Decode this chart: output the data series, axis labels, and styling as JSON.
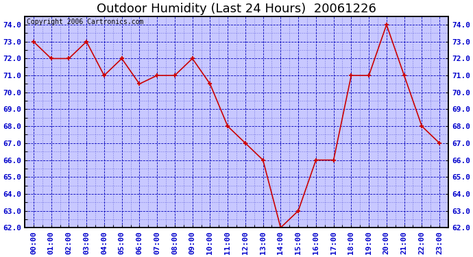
{
  "title": "Outdoor Humidity (Last 24 Hours)  20061226",
  "copyright_text": "Copyright 2006 Cartronics.com",
  "x_labels": [
    "00:00",
    "01:00",
    "02:00",
    "03:00",
    "04:00",
    "05:00",
    "06:00",
    "07:00",
    "08:00",
    "09:00",
    "10:00",
    "11:00",
    "12:00",
    "13:00",
    "14:00",
    "15:00",
    "16:00",
    "17:00",
    "18:00",
    "19:00",
    "20:00",
    "21:00",
    "22:00",
    "23:00"
  ],
  "y_values": [
    73.0,
    72.0,
    72.0,
    73.0,
    71.0,
    72.0,
    70.5,
    71.0,
    71.0,
    72.0,
    70.5,
    68.0,
    67.0,
    66.0,
    62.0,
    63.0,
    66.0,
    66.0,
    71.0,
    71.0,
    74.0,
    71.0,
    68.0,
    67.0
  ],
  "line_color": "#cc0000",
  "marker_color": "#cc0000",
  "plot_bg_color": "#c8c8ff",
  "outer_bg_color": "#ffffff",
  "grid_color": "#0000bb",
  "axis_label_color": "#0000cc",
  "title_color": "#000000",
  "ylim": [
    62.0,
    74.5
  ],
  "ytick_min": 62.0,
  "ytick_max": 74.0,
  "ytick_step": 1.0,
  "title_fontsize": 13,
  "tick_fontsize": 8,
  "copyright_fontsize": 7
}
